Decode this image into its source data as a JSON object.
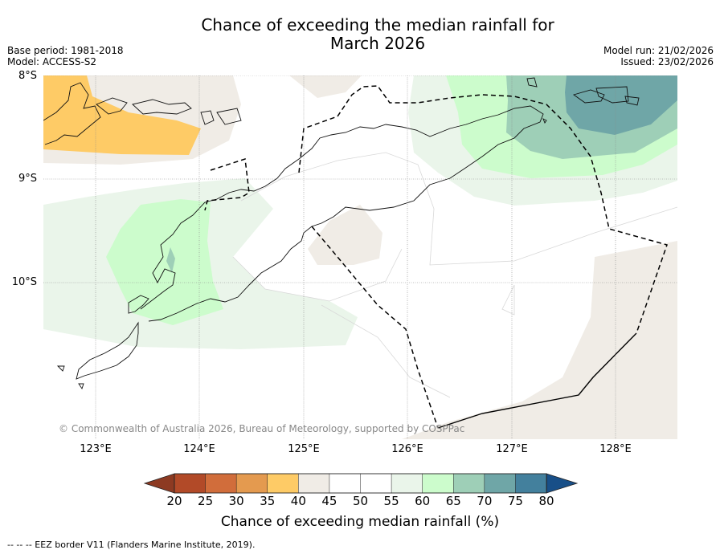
{
  "title": {
    "line1": "Chance of exceeding the median rainfall for",
    "line2": "March 2026"
  },
  "meta": {
    "base_period": "Base period: 1981-2018",
    "model": "Model: ACCESS-S2",
    "model_run": "Model run: 21/02/2026",
    "issued": "Issued: 23/02/2026"
  },
  "map": {
    "lat_labels": [
      "8°S",
      "9°S",
      "10°S"
    ],
    "lon_labels": [
      "123°E",
      "124°E",
      "125°E",
      "126°E",
      "127°E",
      "128°E"
    ],
    "copyright": "© Commonwealth of Australia 2026, Bureau of Meteorology, supported by COSPPac"
  },
  "colorbar": {
    "label": "Chance of exceeding median rainfall (%)",
    "ticks": [
      "20",
      "25",
      "30",
      "35",
      "40",
      "45",
      "50",
      "55",
      "60",
      "65",
      "70",
      "75",
      "80"
    ],
    "colors": [
      "#b24a28",
      "#d16d3b",
      "#e49a4f",
      "#fecb66",
      "#f0ece6",
      "#ffffff",
      "#ffffff",
      "#eaf5ea",
      "#ccfccc",
      "#9ecfb7",
      "#6fa6a7",
      "#43809d"
    ],
    "under_color": "#8d3a22",
    "over_color": "#184f88"
  },
  "footer": "--  --  -- EEZ border V11 (Flanders Marine Institute, 2019)."
}
